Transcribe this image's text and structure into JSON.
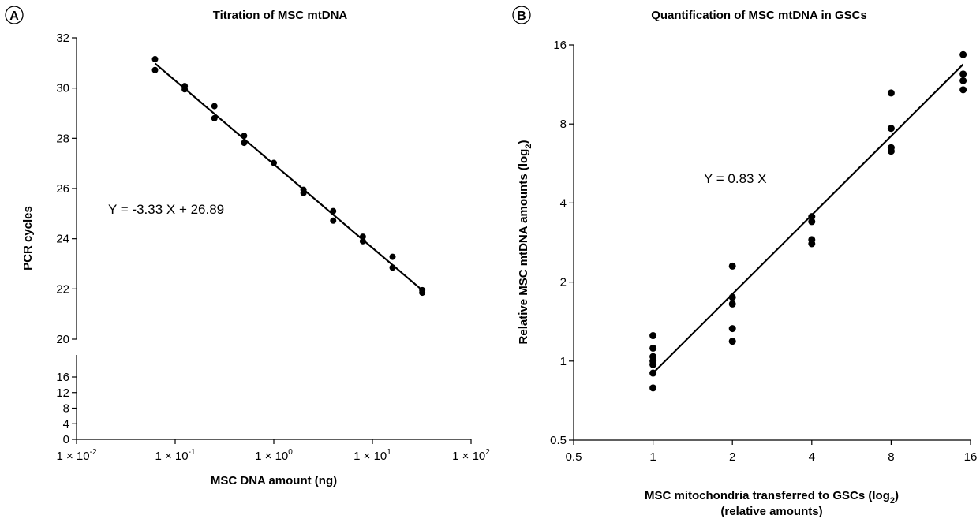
{
  "chart_data": [
    {
      "panel_label": "A",
      "type": "scatter",
      "title": "Titration of MSC mtDNA",
      "xlabel": "MSC DNA amount (ng)",
      "ylabel": "PCR cycles",
      "x_scale": "log10",
      "xlim": [
        0.01,
        100
      ],
      "x_ticks": [
        0.01,
        0.1,
        1,
        10,
        100
      ],
      "x_tick_labels": [
        {
          "mant": "1 × 10",
          "exp": "-2"
        },
        {
          "mant": "1 × 10",
          "exp": "-1"
        },
        {
          "mant": "1 × 10",
          "exp": "0"
        },
        {
          "mant": "1 × 10",
          "exp": "1"
        },
        {
          "mant": "1 × 10",
          "exp": "2"
        }
      ],
      "y_axis_break": true,
      "ylim_lower": [
        0,
        16
      ],
      "y_ticks_lower": [
        0,
        4,
        8,
        12,
        16
      ],
      "ylim_upper": [
        20,
        32
      ],
      "y_ticks_upper": [
        20,
        22,
        24,
        26,
        28,
        30,
        32
      ],
      "points": [
        {
          "x": 0.0625,
          "y": 31.15
        },
        {
          "x": 0.0625,
          "y": 30.72
        },
        {
          "x": 0.125,
          "y": 30.08
        },
        {
          "x": 0.125,
          "y": 29.95
        },
        {
          "x": 0.25,
          "y": 29.28
        },
        {
          "x": 0.25,
          "y": 28.8
        },
        {
          "x": 0.5,
          "y": 28.1
        },
        {
          "x": 0.5,
          "y": 27.82
        },
        {
          "x": 1,
          "y": 27.02
        },
        {
          "x": 2,
          "y": 25.95
        },
        {
          "x": 2,
          "y": 25.82
        },
        {
          "x": 4,
          "y": 25.1
        },
        {
          "x": 4,
          "y": 24.72
        },
        {
          "x": 8,
          "y": 24.08
        },
        {
          "x": 8,
          "y": 23.9
        },
        {
          "x": 16,
          "y": 23.28
        },
        {
          "x": 16,
          "y": 22.85
        },
        {
          "x": 32,
          "y": 21.95
        },
        {
          "x": 32,
          "y": 21.85
        }
      ],
      "fit": {
        "x": [
          0.0625,
          32
        ],
        "y": [
          30.98,
          21.95
        ]
      },
      "equation": "Y = -3.33 X + 26.89",
      "grid": false
    },
    {
      "panel_label": "B",
      "type": "scatter",
      "title": "Quantification of MSC mtDNA in GSCs",
      "xlabel_main": "MSC mitochondria transferred to GSCs (log",
      "xlabel_sub": "2",
      "xlabel_end": ")",
      "xlabel_line2": "(relative amounts)",
      "ylabel_main": "Relative MSC mtDNA amounts (log",
      "ylabel_sub": "2",
      "ylabel_end": ")",
      "x_scale": "log2",
      "y_scale": "log2",
      "xlim": [
        0.5,
        16
      ],
      "ylim": [
        0.5,
        16
      ],
      "x_ticks": [
        0.5,
        1,
        2,
        4,
        8,
        16
      ],
      "y_ticks": [
        0.5,
        1,
        2,
        4,
        8,
        16
      ],
      "points": [
        {
          "x": 1,
          "y": 1.25
        },
        {
          "x": 1,
          "y": 1.12
        },
        {
          "x": 1,
          "y": 1.04
        },
        {
          "x": 1,
          "y": 1.0
        },
        {
          "x": 1,
          "y": 0.97
        },
        {
          "x": 1,
          "y": 0.9
        },
        {
          "x": 1,
          "y": 0.79
        },
        {
          "x": 2,
          "y": 2.3
        },
        {
          "x": 2,
          "y": 1.75
        },
        {
          "x": 2,
          "y": 1.65
        },
        {
          "x": 2,
          "y": 1.33
        },
        {
          "x": 2,
          "y": 1.19
        },
        {
          "x": 4,
          "y": 3.55
        },
        {
          "x": 4,
          "y": 3.4
        },
        {
          "x": 4,
          "y": 2.9
        },
        {
          "x": 4,
          "y": 2.8
        },
        {
          "x": 8,
          "y": 10.5
        },
        {
          "x": 8,
          "y": 7.7
        },
        {
          "x": 8,
          "y": 6.5
        },
        {
          "x": 8,
          "y": 6.3
        },
        {
          "x": 15,
          "y": 14.7
        },
        {
          "x": 15,
          "y": 12.4
        },
        {
          "x": 15,
          "y": 11.7
        },
        {
          "x": 15,
          "y": 10.8
        }
      ],
      "fit": {
        "x": [
          1,
          15
        ],
        "y": [
          0.9,
          13.5
        ]
      },
      "equation": "Y = 0.83 X",
      "grid": false
    }
  ]
}
